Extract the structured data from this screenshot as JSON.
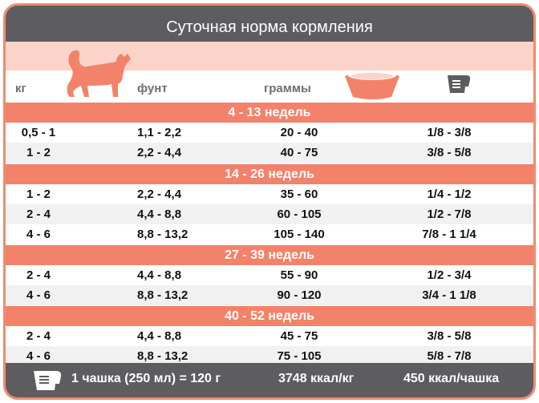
{
  "title": "Суточная норма кормления",
  "headers": {
    "kg": "кг",
    "lb": "фунт",
    "grams": "граммы"
  },
  "icons": {
    "cat": "cat-icon",
    "bowl": "bowl-icon",
    "cup": "measuring-cup-icon"
  },
  "colors": {
    "accent": "#f3826a",
    "dark": "#5d5d60",
    "light": "#fbd3c8"
  },
  "sections": [
    {
      "label": "4 - 13 недель",
      "rows": [
        {
          "kg": "0,5 - 1",
          "lb": "1,1 - 2,2",
          "g": "20 - 40",
          "cup": "1/8 - 3/8"
        },
        {
          "kg": "1 - 2",
          "lb": "2,2 - 4,4",
          "g": "40 - 75",
          "cup": "3/8 - 5/8"
        }
      ]
    },
    {
      "label": "14 - 26 недель",
      "rows": [
        {
          "kg": "1 - 2",
          "lb": "2,2 - 4,4",
          "g": "35 - 60",
          "cup": "1/4 - 1/2"
        },
        {
          "kg": "2 - 4",
          "lb": "4,4 - 8,8",
          "g": "60 - 105",
          "cup": "1/2 - 7/8"
        },
        {
          "kg": "4 - 6",
          "lb": "8,8 - 13,2",
          "g": "105 - 140",
          "cup": "7/8 - 1 1/4"
        }
      ]
    },
    {
      "label": "27 - 39 недель",
      "rows": [
        {
          "kg": "2 - 4",
          "lb": "4,4 - 8,8",
          "g": "55 - 90",
          "cup": "1/2 - 3/4"
        },
        {
          "kg": "4 - 6",
          "lb": "8,8 - 13,2",
          "g": "90 - 120",
          "cup": "3/4 - 1 1/8"
        }
      ]
    },
    {
      "label": "40 - 52 недель",
      "rows": [
        {
          "kg": "2 - 4",
          "lb": "4,4 - 8,8",
          "g": "45 - 75",
          "cup": "3/8 - 5/8"
        },
        {
          "kg": "4 - 6",
          "lb": "8,8 - 13,2",
          "g": "75 - 105",
          "cup": "5/8 - 7/8"
        }
      ]
    }
  ],
  "footer": {
    "cup_info": "1 чашка (250 мл) = 120 г",
    "kcal_kg": "3748 ккал/кг",
    "kcal_cup": "450 ккал/чашка"
  }
}
